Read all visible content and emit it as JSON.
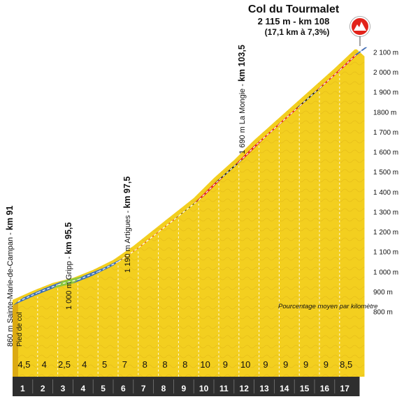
{
  "chart_data": {
    "type": "area",
    "title": "Col du Tourmalet",
    "subtitle_line1": "2 115 m - km 108",
    "subtitle_line2": "(17,1 km à 7,3%)",
    "note": "Pourcentage moyen par kilomètre",
    "y_ticks": [
      "800 m",
      "900 m",
      "1 000 m",
      "1 100 m",
      "1 200 m",
      "1 300 m",
      "1 400 m",
      "1 500 m",
      "1 600 m",
      "1 700 m",
      "1800 m",
      "1 900 m",
      "2 000 m",
      "2 100 m"
    ],
    "y_tick_values": [
      800,
      900,
      1000,
      1100,
      1200,
      1300,
      1400,
      1500,
      1600,
      1700,
      1800,
      1900,
      2000,
      2100
    ],
    "ylim": [
      700,
      2150
    ],
    "km_labels": [
      "1",
      "2",
      "3",
      "4",
      "5",
      "6",
      "7",
      "8",
      "9",
      "10",
      "11",
      "12",
      "13",
      "14",
      "15",
      "16",
      "17"
    ],
    "gradient_labels": [
      "4,5",
      "4",
      "2,5",
      "4",
      "5",
      "7",
      "8",
      "8",
      "8",
      "10",
      "9",
      "10",
      "9",
      "9",
      "9",
      "9",
      "8,5"
    ],
    "colors": {
      "sky": "#3b6fb8",
      "green": "#8cc63f",
      "red": "#e2231a",
      "black": "#1a1a1a",
      "fill": "#f3cf1f",
      "fill_dark": "#dcaa12",
      "band": "#2e2e2e",
      "summit": "#e2231a"
    },
    "segments": [
      {
        "km": 1,
        "start": 860,
        "end": 905,
        "pct": 4.5,
        "color": "sky"
      },
      {
        "km": 2,
        "start": 905,
        "end": 945,
        "pct": 4,
        "color": "sky"
      },
      {
        "km": 3,
        "start": 945,
        "end": 970,
        "pct": 2.5,
        "color": "green"
      },
      {
        "km": 4,
        "start": 970,
        "end": 1010,
        "pct": 4,
        "color": "sky"
      },
      {
        "km": 5,
        "start": 1010,
        "end": 1060,
        "pct": 5,
        "color": "sky"
      },
      {
        "km": 6,
        "start": 1060,
        "end": 1130,
        "pct": 7,
        "color": "red"
      },
      {
        "km": 7,
        "start": 1130,
        "end": 1210,
        "pct": 8,
        "color": "red"
      },
      {
        "km": 8,
        "start": 1210,
        "end": 1290,
        "pct": 8,
        "color": "red"
      },
      {
        "km": 9,
        "start": 1290,
        "end": 1370,
        "pct": 8,
        "color": "black"
      },
      {
        "km": 10,
        "start": 1370,
        "end": 1470,
        "pct": 10,
        "color": "red"
      },
      {
        "km": 11,
        "start": 1470,
        "end": 1560,
        "pct": 9,
        "color": "black"
      },
      {
        "km": 12,
        "start": 1560,
        "end": 1660,
        "pct": 10,
        "color": "red"
      },
      {
        "km": 13,
        "start": 1660,
        "end": 1750,
        "pct": 9,
        "color": "red"
      },
      {
        "km": 14,
        "start": 1750,
        "end": 1840,
        "pct": 9,
        "color": "red"
      },
      {
        "km": 15,
        "start": 1840,
        "end": 1930,
        "pct": 9,
        "color": "black"
      },
      {
        "km": 16,
        "start": 1930,
        "end": 2020,
        "pct": 9,
        "color": "red"
      },
      {
        "km": 17,
        "start": 2020,
        "end": 2115,
        "pct": 8.5,
        "color": "red"
      },
      {
        "km": 17.1,
        "start": 2115,
        "end": 2115,
        "pct": null,
        "color": "sky"
      }
    ],
    "annotations": [
      {
        "id": "sainte-marie",
        "altitude_text": "860 m Sainte-Marie-de-Campan",
        "km_text": "km 91",
        "sub": "Pied de col"
      },
      {
        "id": "gripp",
        "altitude_text": "1 000 m Gripp",
        "km_text": "km 95,5",
        "sub": ""
      },
      {
        "id": "artigues",
        "altitude_text": "1 190 m Artigues",
        "km_text": "km 97,5",
        "sub": ""
      },
      {
        "id": "la-mongie",
        "altitude_text": "1 690 m La Mongie",
        "km_text": "km 103,5",
        "sub": ""
      }
    ]
  }
}
